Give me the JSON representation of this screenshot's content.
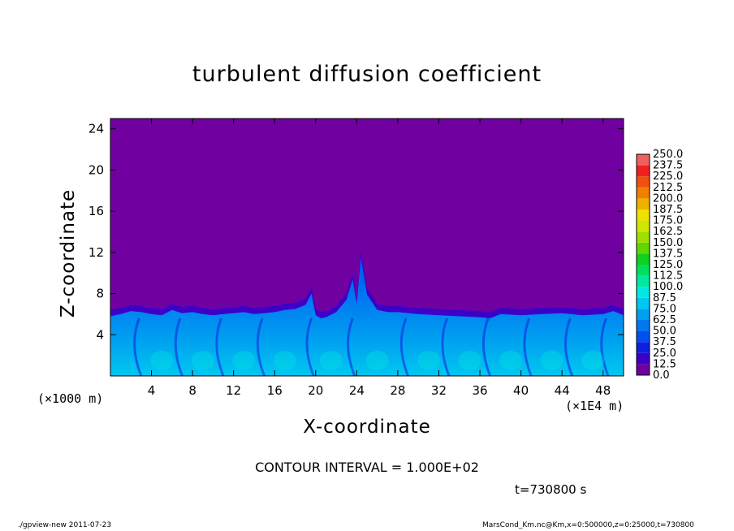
{
  "chart_data": {
    "type": "heatmap",
    "title": "turbulent diffusion coefficient",
    "xlabel": "X-coordinate",
    "ylabel": "Z-coordinate",
    "x_unit_left": "(×1000 m)",
    "x_unit_right": "(×1E4 m)",
    "xlim": [
      0,
      50
    ],
    "ylim": [
      0,
      25
    ],
    "x_ticks": [
      4,
      8,
      12,
      16,
      20,
      24,
      28,
      32,
      36,
      40,
      44,
      48
    ],
    "y_ticks": [
      4,
      8,
      12,
      16,
      20,
      24
    ],
    "contour_interval": "CONTOUR INTERVAL = 1.000E+02",
    "time": "t=730800 s",
    "colorbar": {
      "levels": [
        "0.0",
        "12.5",
        "25.0",
        "37.5",
        "50.0",
        "62.5",
        "75.0",
        "87.5",
        "100.0",
        "112.5",
        "125.0",
        "137.5",
        "150.0",
        "162.5",
        "175.0",
        "187.5",
        "200.0",
        "212.5",
        "225.0",
        "237.5",
        "250.0"
      ],
      "colors": [
        "#7000a0",
        "#3c00c8",
        "#1020e0",
        "#0050f0",
        "#0078f0",
        "#00a0f0",
        "#00c8f0",
        "#00e8e0",
        "#00e8a0",
        "#00e060",
        "#10d020",
        "#60d800",
        "#a0e000",
        "#d0e800",
        "#f0e000",
        "#f0b000",
        "#f08000",
        "#f05010",
        "#f02020",
        "#f06060"
      ]
    },
    "boundary_layer_top_profile": {
      "x": [
        0,
        1,
        2,
        3,
        4,
        5,
        6,
        7,
        8,
        9,
        10,
        11,
        12,
        13,
        14,
        15,
        16,
        17,
        18,
        19,
        19.6,
        20,
        20.5,
        21,
        22,
        23,
        23.6,
        24,
        24.4,
        25,
        26,
        27,
        28,
        30,
        32,
        34,
        36,
        37,
        38,
        40,
        42,
        44,
        46,
        48,
        49,
        50
      ],
      "z": [
        6.4,
        6.6,
        6.9,
        6.8,
        6.6,
        6.5,
        7.0,
        6.7,
        6.8,
        6.6,
        6.5,
        6.6,
        6.7,
        6.8,
        6.6,
        6.7,
        6.8,
        7.0,
        7.1,
        7.5,
        8.6,
        6.5,
        6.2,
        6.3,
        6.8,
        8.0,
        10.0,
        7.6,
        12.2,
        8.5,
        7.0,
        6.8,
        6.8,
        6.6,
        6.5,
        6.4,
        6.3,
        6.2,
        6.6,
        6.5,
        6.6,
        6.7,
        6.5,
        6.6,
        6.9,
        6.5
      ]
    }
  },
  "footer": {
    "left": "./gpview-new   2011-07-23",
    "right": "MarsCond_Km.nc@Km,x=0:500000,z=0:25000,t=730800"
  }
}
